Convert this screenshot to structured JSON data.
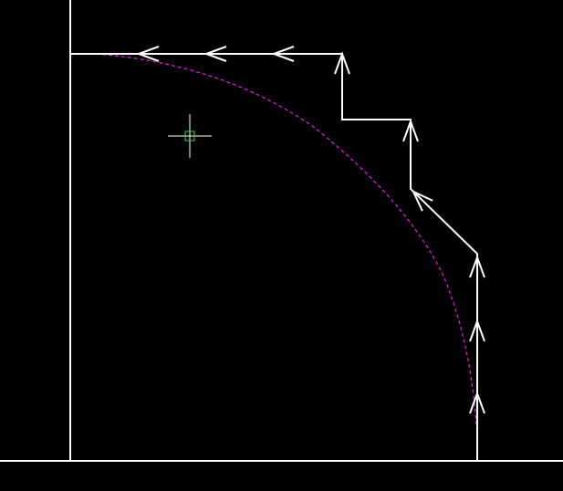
{
  "colors": {
    "background": "#000000",
    "path": "#ffffff",
    "arc": "#e020e0",
    "cursor_crosshair": "#ffffff",
    "cursor_box": "#3cd63c"
  },
  "icons": {
    "cursor": "crosshair-cursor-icon",
    "arrowhead": "arrowhead-icon"
  },
  "drawing": {
    "style": "cad-viewport",
    "arc_style": "dashed",
    "arrow_style": "open-v"
  }
}
